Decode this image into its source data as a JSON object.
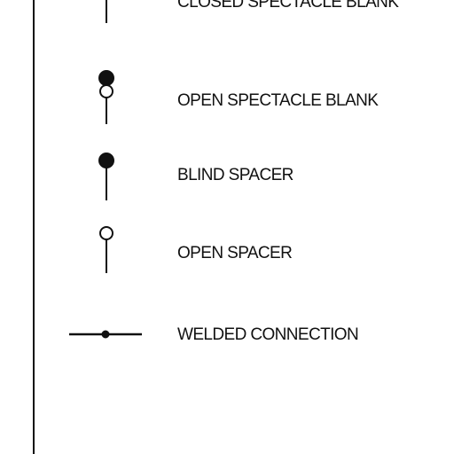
{
  "legend": {
    "items": [
      {
        "label": "CLOSED SPECTACLE BLANK"
      },
      {
        "label": "OPEN SPECTACLE BLANK"
      },
      {
        "label": "BLIND SPACER"
      },
      {
        "label": "OPEN SPACER"
      },
      {
        "label": "WELDED CONNECTION"
      }
    ]
  },
  "colors": {
    "line": "#111111",
    "background": "#ffffff"
  }
}
